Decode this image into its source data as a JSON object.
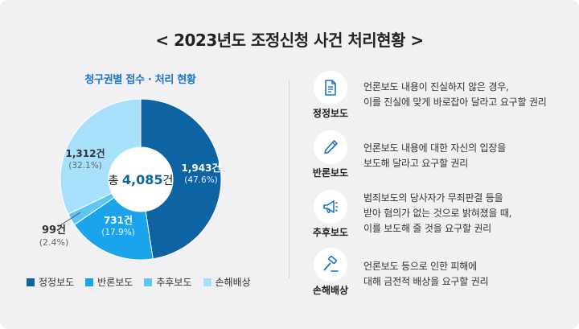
{
  "title": "< 2023년도 조정신청 사건 처리현황 >",
  "chart_data": {
    "type": "pie",
    "title": "청구권별 접수 · 처리 현황",
    "center_label": {
      "prefix": "총 ",
      "number": "4,085",
      "suffix": "건"
    },
    "categories": [
      "정정보도",
      "반론보도",
      "추후보도",
      "손해배상"
    ],
    "values": [
      1943,
      731,
      99,
      1312
    ],
    "value_labels": [
      "1,943건",
      "731건",
      "99건",
      "1,312건"
    ],
    "percent_labels": [
      "(47.6%)",
      "(17.9%)",
      "(2.4%)",
      "(32.1%)"
    ],
    "colors": [
      "#0e63a3",
      "#1ba3ec",
      "#5ec5f5",
      "#a6e0fb"
    ],
    "legend_placement": "bottom"
  },
  "items": [
    {
      "label": "정정보도",
      "icon": "document-icon",
      "desc": "언론보도 내용이 진실하지 않은 경우,\n이를 진실에 맞게 바로잡아 달라고 요구할 권리"
    },
    {
      "label": "반론보도",
      "icon": "pencil-icon",
      "desc": "언론보도 내용에 대한 자신의 입장을\n보도해 달라고 요구할 권리"
    },
    {
      "label": "추후보도",
      "icon": "megaphone-icon",
      "desc": "범죄보도의 당사자가 무죄판결 등을\n받아 혐의가 없는 것으로 밝혀졌을 때,\n이를 보도해 줄 것을 요구할 권리"
    },
    {
      "label": "손해배상",
      "icon": "gavel-icon",
      "desc": "언론보도 등으로 인한 피해에\n대해 금전적 배상을 요구할 권리"
    }
  ]
}
